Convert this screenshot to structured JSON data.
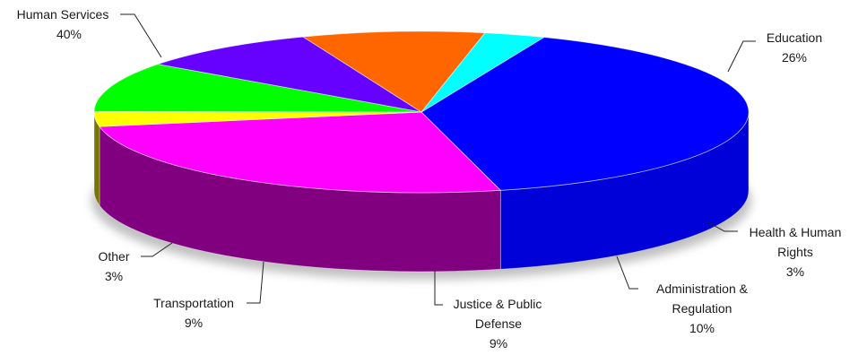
{
  "chart_data": {
    "type": "pie",
    "style": "3d-exploded-tilted",
    "legend": "none",
    "slices": [
      {
        "name": "Human Services",
        "pct_label": "40%",
        "value": 40,
        "color": "#0000ff",
        "side_color": "#0000d8"
      },
      {
        "name": "Education",
        "pct_label": "26%",
        "value": 26,
        "color": "#ff00ff",
        "side_color": "#800080"
      },
      {
        "name": "Health & Human Rights",
        "pct_label": "3%",
        "value": 3,
        "color": "#ffff00",
        "side_color": "#777700"
      },
      {
        "name": "Administration & Regulation",
        "pct_label": "10%",
        "value": 10,
        "color": "#00ff00",
        "side_color": "#008000"
      },
      {
        "name": "Justice & Public Defense",
        "pct_label": "9%",
        "value": 9,
        "color": "#6600ff",
        "side_color": "#4e0ad0"
      },
      {
        "name": "Transportation",
        "pct_label": "9%",
        "value": 9,
        "color": "#ff6600",
        "side_color": "#d85f0e"
      },
      {
        "name": "Other",
        "pct_label": "3%",
        "value": 3,
        "color": "#00ffff",
        "side_color": "#00e5ee"
      }
    ]
  }
}
